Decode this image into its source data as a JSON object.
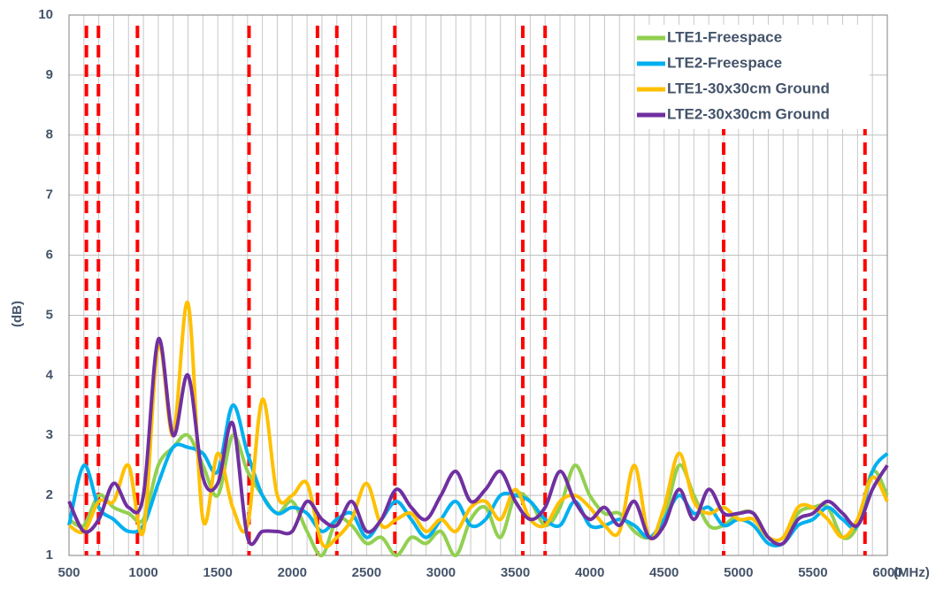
{
  "chart_data": {
    "type": "line",
    "x_label": "(MHz)",
    "y_label": "(dB)",
    "x": [
      500,
      600,
      700,
      800,
      900,
      1000,
      1100,
      1200,
      1300,
      1400,
      1500,
      1600,
      1700,
      1800,
      1900,
      2000,
      2100,
      2200,
      2300,
      2400,
      2500,
      2600,
      2700,
      2800,
      2900,
      3000,
      3100,
      3200,
      3300,
      3400,
      3500,
      3600,
      3700,
      3800,
      3900,
      4000,
      4100,
      4200,
      4300,
      4400,
      4500,
      4600,
      4700,
      4800,
      4900,
      5000,
      5100,
      5200,
      5300,
      5400,
      5500,
      5600,
      5700,
      5800,
      5900,
      6000
    ],
    "series": [
      {
        "name": "LTE1-Freespace",
        "color": "#92d050",
        "values": [
          1.6,
          1.5,
          2.0,
          1.8,
          1.7,
          1.6,
          2.5,
          2.8,
          3.0,
          2.5,
          2.0,
          3.0,
          2.4,
          2.0,
          1.7,
          1.9,
          1.4,
          1.0,
          1.6,
          1.5,
          1.2,
          1.3,
          1.0,
          1.3,
          1.2,
          1.4,
          1.0,
          1.6,
          1.8,
          1.3,
          2.0,
          1.9,
          1.5,
          1.8,
          2.5,
          2.0,
          1.7,
          1.7,
          1.4,
          1.3,
          1.6,
          2.5,
          2.0,
          1.5,
          1.5,
          1.7,
          1.7,
          1.3,
          1.2,
          1.7,
          1.8,
          1.8,
          1.3,
          1.5,
          2.4,
          2.0
        ]
      },
      {
        "name": "LTE2-Freespace",
        "color": "#00b0f0",
        "values": [
          1.5,
          2.5,
          1.8,
          1.6,
          1.4,
          1.5,
          2.2,
          2.8,
          2.8,
          2.7,
          2.4,
          3.5,
          2.7,
          2.0,
          1.7,
          1.8,
          1.7,
          1.4,
          1.6,
          1.7,
          1.3,
          1.6,
          1.9,
          1.6,
          1.3,
          1.6,
          1.9,
          1.5,
          1.6,
          2.0,
          2.0,
          1.9,
          1.6,
          1.5,
          1.9,
          1.5,
          1.5,
          1.6,
          1.5,
          1.3,
          1.6,
          2.0,
          1.7,
          1.8,
          1.5,
          1.6,
          1.5,
          1.2,
          1.2,
          1.5,
          1.6,
          1.8,
          1.6,
          1.5,
          2.4,
          2.7
        ]
      },
      {
        "name": "LTE1-30x30cm Ground",
        "color": "#ffc000",
        "values": [
          1.5,
          1.4,
          1.9,
          1.9,
          2.5,
          1.4,
          4.5,
          3.0,
          5.2,
          1.6,
          2.7,
          1.8,
          1.5,
          3.6,
          2.0,
          2.0,
          2.2,
          1.2,
          1.3,
          1.6,
          2.2,
          1.5,
          1.6,
          1.7,
          1.4,
          1.6,
          1.4,
          1.8,
          1.9,
          1.6,
          2.1,
          1.6,
          1.5,
          1.9,
          2.0,
          1.8,
          1.5,
          1.4,
          2.5,
          1.3,
          1.8,
          2.7,
          1.9,
          1.7,
          1.8,
          1.6,
          1.6,
          1.3,
          1.3,
          1.8,
          1.8,
          1.6,
          1.3,
          1.6,
          2.3,
          1.9
        ]
      },
      {
        "name": "LTE2-30x30cm Ground",
        "color": "#7030a0",
        "values": [
          1.9,
          1.4,
          1.6,
          2.2,
          1.8,
          2.0,
          4.6,
          3.0,
          4.0,
          2.3,
          2.2,
          3.2,
          1.3,
          1.4,
          1.4,
          1.4,
          1.9,
          1.6,
          1.5,
          1.9,
          1.4,
          1.6,
          2.1,
          1.8,
          1.6,
          2.0,
          2.4,
          1.9,
          2.1,
          2.4,
          1.9,
          1.6,
          1.8,
          2.4,
          1.9,
          1.6,
          1.8,
          1.5,
          1.9,
          1.3,
          1.5,
          2.1,
          1.6,
          2.1,
          1.7,
          1.7,
          1.7,
          1.3,
          1.2,
          1.6,
          1.7,
          1.9,
          1.7,
          1.5,
          2.1,
          2.5
        ]
      }
    ],
    "band_edges": [
      617,
      698,
      960,
      1710,
      2170,
      2300,
      2690,
      3550,
      3700,
      4900,
      5850
    ],
    "band_edge_color": "#ff0000",
    "xlim": [
      500,
      6000
    ],
    "xticks": [
      500,
      1000,
      1500,
      2000,
      2500,
      3000,
      3500,
      4000,
      4500,
      5000,
      5500,
      6000
    ],
    "ylim": [
      1,
      10
    ],
    "yticks": [
      1,
      2,
      3,
      4,
      5,
      6,
      7,
      8,
      9,
      10
    ],
    "minor_grid_step": 100,
    "grid": true,
    "legend": "upper right"
  }
}
